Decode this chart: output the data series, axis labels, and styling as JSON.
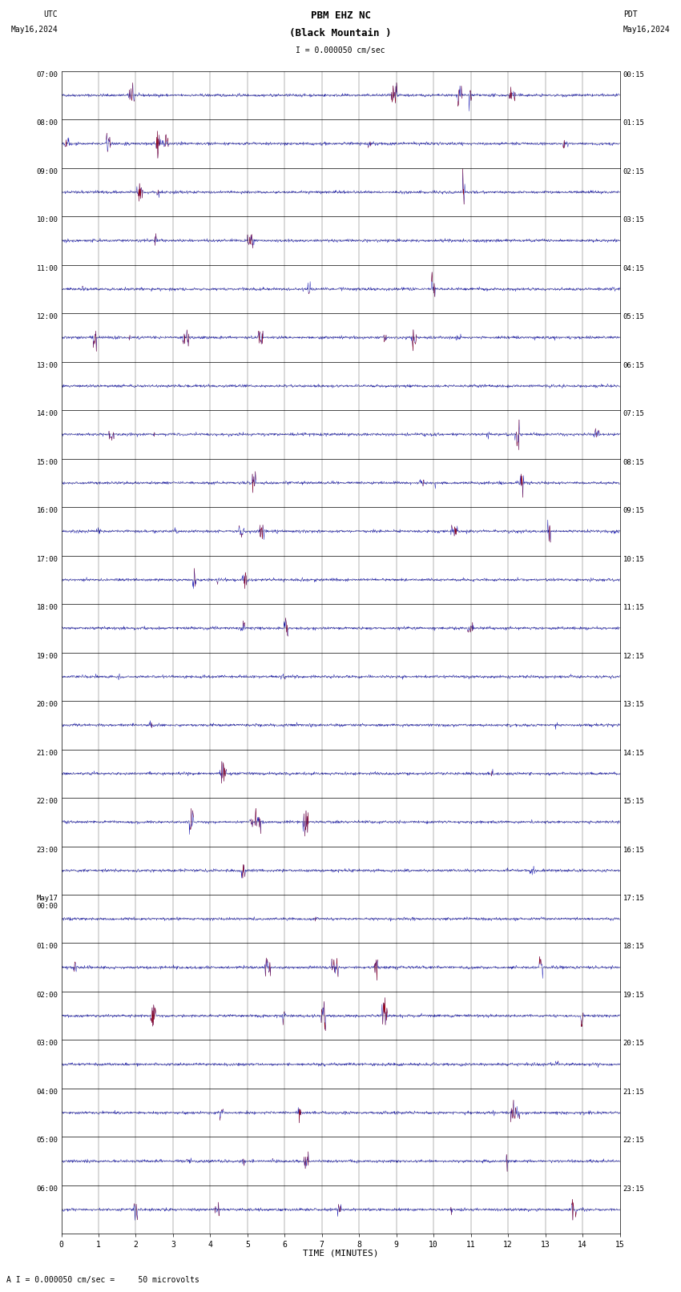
{
  "title_line1": "PBM EHZ NC",
  "title_line2": "(Black Mountain )",
  "scale_text": "I = 0.000050 cm/sec",
  "bottom_text": "A I = 0.000050 cm/sec =     50 microvolts",
  "left_label_line1": "UTC",
  "left_label_line2": "May16,2024",
  "right_label_line1": "PDT",
  "right_label_line2": "May16,2024",
  "xlabel": "TIME (MINUTES)",
  "left_times": [
    "07:00",
    "08:00",
    "09:00",
    "10:00",
    "11:00",
    "12:00",
    "13:00",
    "14:00",
    "15:00",
    "16:00",
    "17:00",
    "18:00",
    "19:00",
    "20:00",
    "21:00",
    "22:00",
    "23:00",
    "May17\n00:00",
    "01:00",
    "02:00",
    "03:00",
    "04:00",
    "05:00",
    "06:00"
  ],
  "right_times": [
    "00:15",
    "01:15",
    "02:15",
    "03:15",
    "04:15",
    "05:15",
    "06:15",
    "07:15",
    "08:15",
    "09:15",
    "10:15",
    "11:15",
    "12:15",
    "13:15",
    "14:15",
    "15:15",
    "16:15",
    "17:15",
    "18:15",
    "19:15",
    "20:15",
    "21:15",
    "22:15",
    "23:15"
  ],
  "n_rows": 24,
  "n_minutes": 15,
  "samples_per_minute": 100,
  "noise_amp": 0.03,
  "bg_color": "#ffffff",
  "line_color_normal": "#0000aa",
  "line_color_over": "#aa0000",
  "grid_color": "#000000",
  "figsize": [
    8.5,
    16.13
  ],
  "dpi": 100
}
